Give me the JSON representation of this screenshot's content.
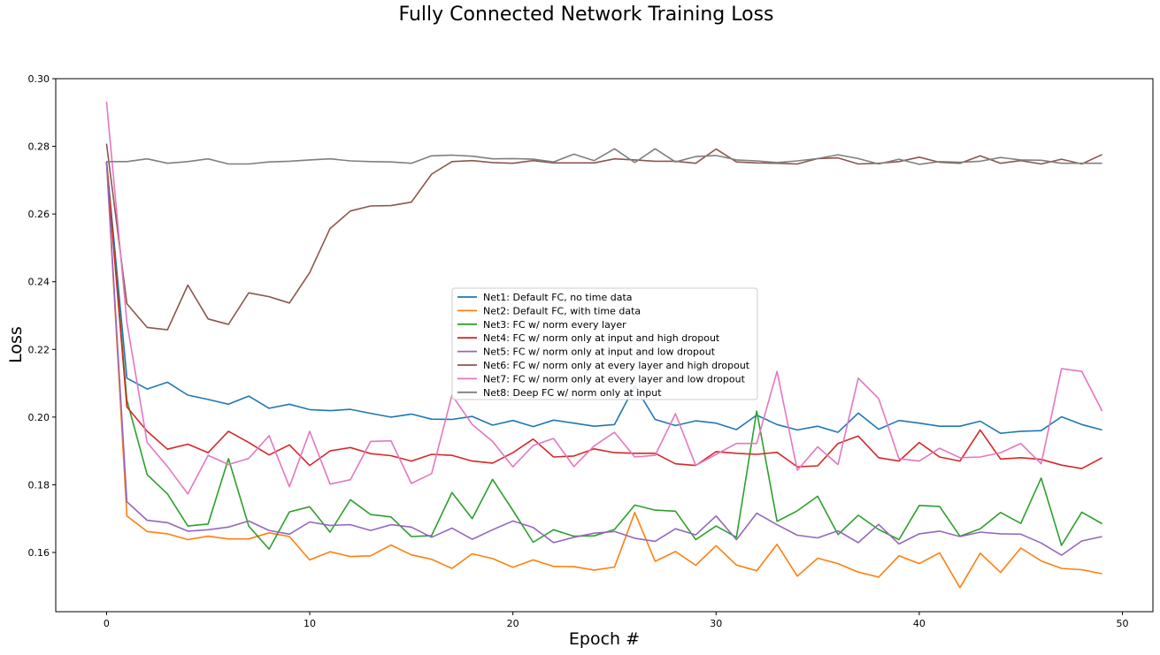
{
  "chart_data": {
    "type": "line",
    "title": "Fully Connected Network Training Loss",
    "xlabel": "Epoch #",
    "ylabel": "Loss",
    "xlim": [
      -2.5,
      51.5
    ],
    "ylim": [
      0.1425,
      0.3
    ],
    "xticks": [
      0,
      10,
      20,
      30,
      40,
      50
    ],
    "yticks": [
      0.16,
      0.18,
      0.2,
      0.22,
      0.24,
      0.26,
      0.28,
      0.3
    ],
    "grid": false,
    "legend_position": "center",
    "x": [
      0,
      1,
      2,
      3,
      4,
      5,
      6,
      7,
      8,
      9,
      10,
      11,
      12,
      13,
      14,
      15,
      16,
      17,
      18,
      19,
      20,
      21,
      22,
      23,
      24,
      25,
      26,
      27,
      28,
      29,
      30,
      31,
      32,
      33,
      34,
      35,
      36,
      37,
      38,
      39,
      40,
      41,
      42,
      43,
      44,
      45,
      46,
      47,
      48,
      49
    ],
    "series": [
      {
        "name": "Net1: Default FC, no time data",
        "color": "#1f77b4",
        "values": [
          0.2755,
          0.2115,
          0.2083,
          0.2103,
          0.2065,
          0.2052,
          0.2038,
          0.2062,
          0.2026,
          0.2038,
          0.2022,
          0.2019,
          0.2023,
          0.2011,
          0.2,
          0.2009,
          0.1994,
          0.1993,
          0.2002,
          0.1976,
          0.199,
          0.1972,
          0.1991,
          0.1982,
          0.1973,
          0.1978,
          0.2092,
          0.1993,
          0.1975,
          0.1989,
          0.1982,
          0.1963,
          0.2006,
          0.1978,
          0.1962,
          0.1973,
          0.1955,
          0.2012,
          0.1964,
          0.199,
          0.1982,
          0.1973,
          0.1973,
          0.1988,
          0.1952,
          0.1958,
          0.196,
          0.2001,
          0.1978,
          0.1962
        ]
      },
      {
        "name": "Net2: Default FC, with time data",
        "color": "#ff7f0e",
        "values": [
          0.2755,
          0.1708,
          0.1662,
          0.1655,
          0.1638,
          0.1648,
          0.164,
          0.164,
          0.1658,
          0.1647,
          0.1578,
          0.1602,
          0.1588,
          0.159,
          0.1622,
          0.1593,
          0.158,
          0.1553,
          0.1596,
          0.1582,
          0.1556,
          0.1578,
          0.1559,
          0.1558,
          0.1548,
          0.1557,
          0.1718,
          0.1574,
          0.1603,
          0.1562,
          0.162,
          0.1563,
          0.1546,
          0.1624,
          0.153,
          0.1583,
          0.1567,
          0.1542,
          0.1527,
          0.159,
          0.1567,
          0.1599,
          0.1496,
          0.1598,
          0.1541,
          0.1613,
          0.1575,
          0.1553,
          0.1549,
          0.1537
        ]
      },
      {
        "name": "Net3: FC w/ norm every layer",
        "color": "#2ca02c",
        "values": [
          0.2755,
          0.205,
          0.183,
          0.1773,
          0.1678,
          0.1684,
          0.1877,
          0.1678,
          0.161,
          0.172,
          0.1735,
          0.166,
          0.1756,
          0.1712,
          0.1705,
          0.1647,
          0.165,
          0.1777,
          0.17,
          0.1816,
          0.1724,
          0.163,
          0.1667,
          0.1648,
          0.1649,
          0.1668,
          0.174,
          0.1725,
          0.1722,
          0.1638,
          0.1678,
          0.1645,
          0.2018,
          0.1692,
          0.1723,
          0.1766,
          0.1653,
          0.171,
          0.1668,
          0.1638,
          0.1739,
          0.1736,
          0.1648,
          0.167,
          0.1718,
          0.1686,
          0.182,
          0.1621,
          0.1719,
          0.1685
        ]
      },
      {
        "name": "Net4: FC w/ norm only at input and high dropout",
        "color": "#d62728",
        "values": [
          0.2755,
          0.203,
          0.1958,
          0.1905,
          0.192,
          0.1895,
          0.1958,
          0.1925,
          0.1888,
          0.1918,
          0.1857,
          0.19,
          0.191,
          0.1892,
          0.1886,
          0.187,
          0.189,
          0.1887,
          0.187,
          0.1864,
          0.1895,
          0.1935,
          0.1882,
          0.1885,
          0.1906,
          0.1895,
          0.1893,
          0.1893,
          0.1862,
          0.1857,
          0.1898,
          0.1893,
          0.189,
          0.1896,
          0.1853,
          0.1856,
          0.1922,
          0.1944,
          0.188,
          0.187,
          0.1925,
          0.1882,
          0.187,
          0.1962,
          0.1876,
          0.188,
          0.1875,
          0.1858,
          0.1848,
          0.188
        ]
      },
      {
        "name": "Net5: FC w/ norm only at input and low dropout",
        "color": "#9467bd",
        "values": [
          0.2755,
          0.175,
          0.1695,
          0.1688,
          0.1663,
          0.1667,
          0.1675,
          0.1693,
          0.1665,
          0.1654,
          0.169,
          0.168,
          0.1682,
          0.1665,
          0.1682,
          0.1675,
          0.1645,
          0.1672,
          0.1639,
          0.1667,
          0.1693,
          0.1674,
          0.1629,
          0.1645,
          0.1657,
          0.1662,
          0.1642,
          0.1633,
          0.167,
          0.1652,
          0.1708,
          0.1638,
          0.1716,
          0.1682,
          0.1651,
          0.1643,
          0.1664,
          0.1629,
          0.1683,
          0.1625,
          0.1655,
          0.1663,
          0.1647,
          0.166,
          0.1655,
          0.1654,
          0.1628,
          0.1592,
          0.1634,
          0.1647
        ]
      },
      {
        "name": "Net6: FC w/ norm only at every layer and high dropout",
        "color": "#8c564b",
        "values": [
          0.2808,
          0.2335,
          0.2265,
          0.2258,
          0.239,
          0.229,
          0.2274,
          0.2367,
          0.2356,
          0.2337,
          0.2427,
          0.2557,
          0.2609,
          0.2624,
          0.2625,
          0.2635,
          0.2718,
          0.2755,
          0.2758,
          0.2752,
          0.275,
          0.2758,
          0.2751,
          0.2751,
          0.2751,
          0.2763,
          0.276,
          0.2756,
          0.2756,
          0.275,
          0.2792,
          0.2754,
          0.2751,
          0.275,
          0.2748,
          0.2764,
          0.2766,
          0.2748,
          0.275,
          0.2755,
          0.2768,
          0.2753,
          0.275,
          0.2772,
          0.275,
          0.2758,
          0.2748,
          0.2762,
          0.2748,
          0.2776
        ]
      },
      {
        "name": "Net7: FC w/ norm only at every layer and low dropout",
        "color": "#e377c2",
        "values": [
          0.2932,
          0.228,
          0.1925,
          0.1854,
          0.1773,
          0.1887,
          0.186,
          0.1878,
          0.1945,
          0.1794,
          0.1958,
          0.1802,
          0.1815,
          0.1928,
          0.193,
          0.1804,
          0.1833,
          0.2065,
          0.1978,
          0.1928,
          0.1853,
          0.1916,
          0.1937,
          0.1854,
          0.1915,
          0.1955,
          0.1882,
          0.1887,
          0.201,
          0.1857,
          0.189,
          0.1922,
          0.1922,
          0.2135,
          0.1843,
          0.1912,
          0.186,
          0.2115,
          0.2055,
          0.1877,
          0.187,
          0.1908,
          0.188,
          0.1882,
          0.1895,
          0.1922,
          0.1862,
          0.2143,
          0.2135,
          0.2018
        ]
      },
      {
        "name": "Net8: Deep FC w/ norm only at input",
        "color": "#7f7f7f",
        "values": [
          0.2755,
          0.2755,
          0.2763,
          0.275,
          0.2755,
          0.2763,
          0.2748,
          0.2748,
          0.2754,
          0.2756,
          0.276,
          0.2763,
          0.2757,
          0.2755,
          0.2754,
          0.275,
          0.2772,
          0.2774,
          0.2771,
          0.2763,
          0.2764,
          0.2762,
          0.2754,
          0.2777,
          0.2758,
          0.2793,
          0.2752,
          0.2793,
          0.2754,
          0.277,
          0.2773,
          0.276,
          0.2757,
          0.2752,
          0.2757,
          0.2764,
          0.2775,
          0.2764,
          0.2748,
          0.2762,
          0.2747,
          0.2755,
          0.2753,
          0.2756,
          0.2767,
          0.276,
          0.2759,
          0.275,
          0.275,
          0.275
        ]
      }
    ]
  }
}
